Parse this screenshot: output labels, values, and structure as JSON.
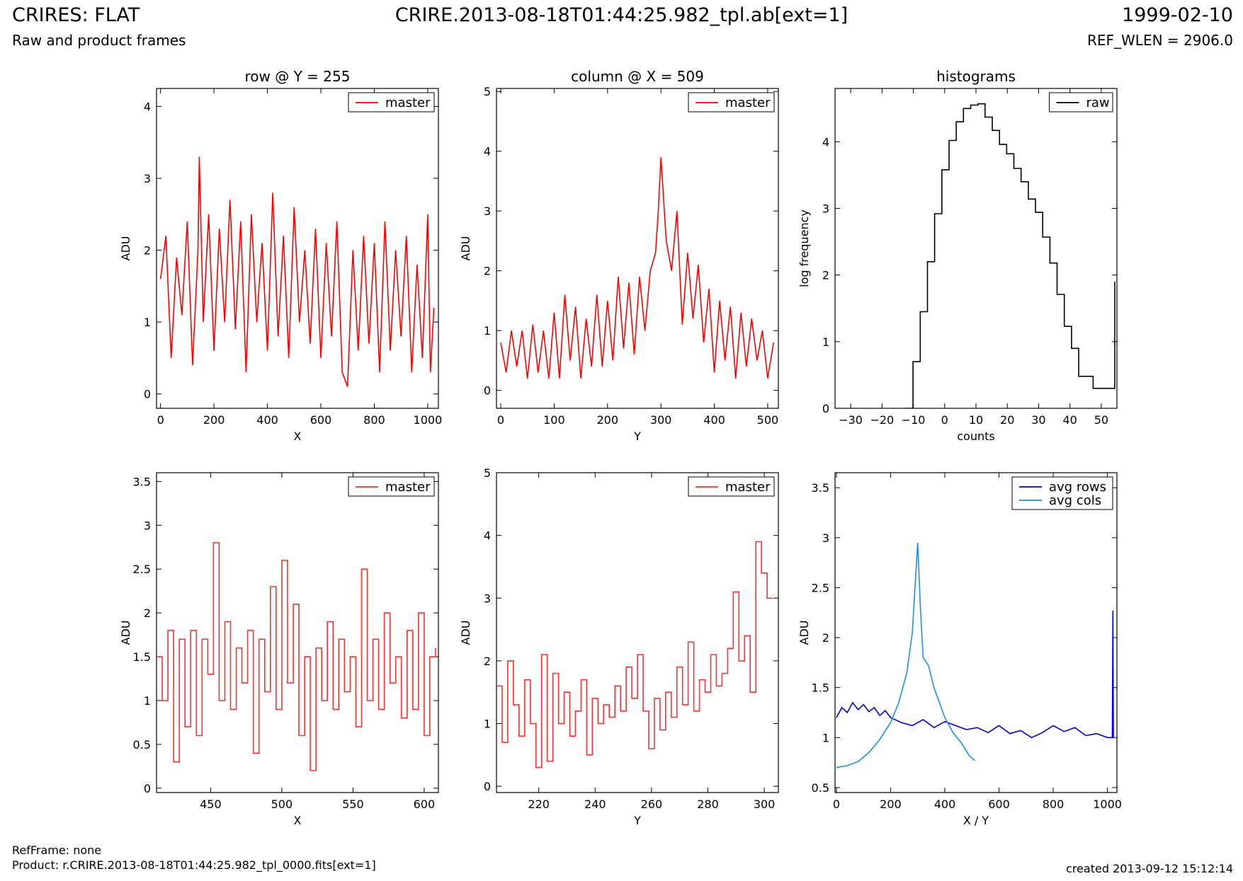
{
  "header": {
    "title_left": "CRIRES: FLAT",
    "subtitle_left": "Raw and product frames",
    "title_center": "CRIRE.2013-08-18T01:44:25.982_tpl.ab[ext=1]",
    "title_right": "1999-02-10",
    "subtitle_right": "REF_WLEN = 2906.0"
  },
  "footer": {
    "refframe": "RefFrame: none",
    "product": "Product: r.CRIRE.2013-08-18T01:44:25.982_tpl_0000.fits[ext=1]",
    "created": "created 2013-09-12 15:12:14"
  },
  "colors": {
    "master": "#ff0000",
    "raw": "#000000",
    "avg_rows": "#0000ee",
    "avg_cols": "#1e8ff0"
  },
  "chart_data": [
    {
      "type": "line",
      "title": "row @ Y = 255",
      "xlabel": "X",
      "ylabel": "ADU",
      "xlim": [
        -15,
        1040
      ],
      "ylim": [
        -0.2,
        4.25
      ],
      "xticks": [
        0,
        200,
        400,
        600,
        800,
        1000
      ],
      "yticks": [
        0,
        1,
        2,
        3,
        4
      ],
      "legend": "top-right",
      "series": [
        {
          "name": "master",
          "color": "#ff0000",
          "step": false,
          "x": [
            0,
            20,
            40,
            60,
            80,
            100,
            120,
            140,
            145,
            160,
            180,
            200,
            220,
            240,
            260,
            280,
            300,
            320,
            340,
            360,
            380,
            400,
            420,
            440,
            460,
            480,
            500,
            520,
            540,
            560,
            580,
            600,
            620,
            640,
            660,
            680,
            700,
            720,
            740,
            760,
            780,
            800,
            820,
            840,
            860,
            880,
            900,
            920,
            940,
            960,
            980,
            1000,
            1010,
            1023
          ],
          "y": [
            1.6,
            2.2,
            0.5,
            1.9,
            1.1,
            2.4,
            0.4,
            2.0,
            3.3,
            1.0,
            2.5,
            0.6,
            2.3,
            1.0,
            2.7,
            0.9,
            2.4,
            0.3,
            2.5,
            1.0,
            2.1,
            0.6,
            2.8,
            0.8,
            2.2,
            0.5,
            2.6,
            1.0,
            2.0,
            0.7,
            2.3,
            0.5,
            2.1,
            0.8,
            2.4,
            0.3,
            0.1,
            2.0,
            0.6,
            2.2,
            0.7,
            2.1,
            0.3,
            2.4,
            0.6,
            2.0,
            0.8,
            2.2,
            0.3,
            1.8,
            0.5,
            2.5,
            0.3,
            1.2
          ]
        }
      ]
    },
    {
      "type": "line",
      "title": "column @ X = 509",
      "xlabel": "Y",
      "ylabel": "ADU",
      "xlim": [
        -8,
        520
      ],
      "ylim": [
        -0.3,
        5.05
      ],
      "xticks": [
        0,
        100,
        200,
        300,
        400,
        500
      ],
      "yticks": [
        0,
        1,
        2,
        3,
        4,
        5
      ],
      "legend": "top-right",
      "series": [
        {
          "name": "master",
          "color": "#ff0000",
          "step": false,
          "x": [
            0,
            10,
            20,
            30,
            40,
            50,
            60,
            70,
            80,
            90,
            100,
            110,
            120,
            130,
            140,
            150,
            160,
            170,
            180,
            190,
            200,
            210,
            220,
            230,
            240,
            250,
            260,
            270,
            280,
            290,
            295,
            300,
            305,
            310,
            320,
            330,
            340,
            350,
            360,
            370,
            380,
            390,
            400,
            410,
            420,
            430,
            440,
            450,
            460,
            470,
            480,
            490,
            500,
            511
          ],
          "y": [
            0.8,
            0.3,
            1.0,
            0.4,
            1.0,
            0.2,
            1.1,
            0.3,
            1.0,
            0.2,
            1.3,
            0.2,
            1.6,
            0.5,
            1.4,
            0.2,
            1.2,
            0.4,
            1.6,
            0.4,
            1.5,
            0.5,
            1.9,
            0.7,
            1.8,
            0.6,
            1.9,
            1.0,
            2.0,
            2.3,
            3.0,
            3.9,
            3.2,
            2.5,
            2.0,
            3.0,
            1.1,
            2.3,
            1.2,
            2.1,
            0.8,
            1.7,
            0.3,
            1.5,
            0.5,
            1.4,
            0.2,
            1.3,
            0.4,
            1.2,
            0.5,
            1.0,
            0.2,
            0.8
          ]
        }
      ]
    },
    {
      "type": "line",
      "title": "histograms",
      "xlabel": "counts",
      "ylabel": "log frequency",
      "xlim": [
        -35,
        55
      ],
      "ylim": [
        0,
        4.8
      ],
      "xticks": [
        -30,
        -20,
        -10,
        0,
        10,
        20,
        30,
        40,
        50
      ],
      "yticks": [
        0,
        1,
        2,
        3,
        4
      ],
      "legend": "top-right",
      "series": [
        {
          "name": "raw",
          "color": "#000000",
          "step": true,
          "x": [
            -12.4,
            -10.1,
            -7.8,
            -5.5,
            -3.2,
            -0.9,
            1.4,
            3.7,
            6.0,
            8.3,
            10.6,
            12.9,
            15.2,
            17.5,
            19.8,
            22.1,
            24.4,
            26.7,
            29.0,
            31.3,
            33.6,
            35.9,
            38.2,
            40.5,
            42.8,
            45.1,
            47.4,
            49.7,
            52.0,
            54.3
          ],
          "y": [
            0.0,
            0.7,
            1.45,
            2.2,
            2.92,
            3.58,
            4.02,
            4.3,
            4.5,
            4.55,
            4.57,
            4.37,
            4.17,
            3.96,
            3.82,
            3.6,
            3.4,
            3.14,
            2.94,
            2.57,
            2.18,
            1.71,
            1.23,
            0.9,
            0.48,
            0.48,
            0.3,
            0.3,
            0.3,
            1.9
          ]
        }
      ]
    },
    {
      "type": "line",
      "title": "",
      "xlabel": "X",
      "ylabel": "ADU",
      "xlim": [
        412,
        610
      ],
      "ylim": [
        -0.05,
        3.6
      ],
      "xticks": [
        450,
        500,
        550,
        600
      ],
      "yticks": [
        0.0,
        0.5,
        1.0,
        1.5,
        2.0,
        2.5,
        3.0,
        3.5
      ],
      "legend": "top-right",
      "series": [
        {
          "name": "master",
          "color": "#ff3030",
          "step": true,
          "x": [
            412,
            416,
            420,
            424,
            428,
            432,
            436,
            440,
            444,
            448,
            452,
            456,
            460,
            464,
            468,
            472,
            476,
            480,
            484,
            488,
            492,
            496,
            500,
            504,
            508,
            512,
            516,
            520,
            524,
            528,
            532,
            536,
            540,
            544,
            548,
            552,
            556,
            560,
            564,
            568,
            572,
            576,
            580,
            584,
            588,
            592,
            596,
            600,
            604,
            608
          ],
          "y": [
            1.5,
            1.0,
            1.8,
            0.3,
            1.7,
            0.7,
            1.8,
            0.6,
            1.7,
            1.3,
            2.8,
            1.0,
            1.9,
            0.9,
            1.6,
            1.2,
            1.8,
            0.4,
            1.7,
            1.1,
            2.3,
            0.9,
            2.6,
            1.2,
            2.1,
            0.6,
            1.5,
            0.2,
            1.6,
            1.0,
            1.9,
            0.9,
            1.7,
            1.1,
            1.5,
            0.7,
            2.5,
            1.0,
            1.7,
            0.9,
            2.0,
            1.2,
            1.5,
            0.8,
            1.8,
            0.9,
            2.0,
            0.6,
            1.5,
            1.6
          ]
        }
      ]
    },
    {
      "type": "line",
      "title": "",
      "xlabel": "Y",
      "ylabel": "ADU",
      "xlim": [
        205,
        305
      ],
      "ylim": [
        -0.1,
        5.0
      ],
      "xticks": [
        220,
        240,
        260,
        280,
        300
      ],
      "yticks": [
        0,
        1,
        2,
        3,
        4,
        5
      ],
      "legend": "top-right",
      "series": [
        {
          "name": "master",
          "color": "#ff3030",
          "step": true,
          "x": [
            205,
            207,
            209,
            211,
            213,
            215,
            217,
            219,
            221,
            223,
            225,
            227,
            229,
            231,
            233,
            235,
            237,
            239,
            241,
            243,
            245,
            247,
            249,
            251,
            253,
            255,
            257,
            259,
            261,
            263,
            265,
            267,
            269,
            271,
            273,
            275,
            277,
            279,
            281,
            283,
            285,
            287,
            289,
            291,
            293,
            295,
            297,
            299,
            301,
            303
          ],
          "y": [
            1.6,
            0.7,
            2.0,
            1.3,
            0.8,
            1.7,
            1.0,
            0.3,
            2.1,
            0.4,
            1.8,
            1.0,
            1.5,
            0.8,
            1.2,
            1.7,
            0.5,
            1.4,
            1.0,
            1.3,
            1.1,
            1.6,
            1.2,
            1.9,
            1.4,
            2.1,
            1.2,
            0.6,
            1.4,
            0.9,
            1.5,
            1.1,
            1.9,
            1.3,
            2.3,
            1.2,
            1.7,
            1.5,
            2.1,
            1.6,
            1.8,
            2.2,
            3.1,
            2.0,
            2.4,
            1.5,
            3.9,
            3.4,
            3.0,
            3.0
          ]
        }
      ]
    },
    {
      "type": "line",
      "title": "",
      "xlabel": "X / Y",
      "ylabel": "ADU",
      "xlim": [
        -5,
        1035
      ],
      "ylim": [
        0.45,
        3.65
      ],
      "xticks": [
        0,
        200,
        400,
        600,
        800,
        1000
      ],
      "yticks": [
        0.5,
        1.0,
        1.5,
        2.0,
        2.5,
        3.0,
        3.5
      ],
      "legend": "top-right",
      "series": [
        {
          "name": "avg rows",
          "color": "#0000ee",
          "step": false,
          "x": [
            0,
            20,
            40,
            60,
            80,
            100,
            120,
            140,
            160,
            180,
            200,
            240,
            280,
            320,
            360,
            400,
            440,
            480,
            520,
            560,
            600,
            640,
            680,
            720,
            760,
            800,
            840,
            880,
            920,
            960,
            1000,
            1018,
            1020,
            1022,
            1023
          ],
          "y": [
            1.2,
            1.3,
            1.25,
            1.35,
            1.28,
            1.33,
            1.26,
            1.3,
            1.22,
            1.27,
            1.2,
            1.15,
            1.12,
            1.18,
            1.1,
            1.16,
            1.12,
            1.08,
            1.1,
            1.05,
            1.12,
            1.04,
            1.07,
            1.0,
            1.05,
            1.12,
            1.06,
            1.1,
            1.02,
            1.04,
            1.0,
            1.0,
            2.27,
            1.0,
            1.0
          ]
        },
        {
          "name": "avg cols",
          "color": "#1e8ff0",
          "step": false,
          "x": [
            0,
            40,
            80,
            120,
            160,
            200,
            230,
            260,
            280,
            290,
            300,
            310,
            320,
            340,
            360,
            380,
            400,
            430,
            460,
            490,
            511
          ],
          "y": [
            0.7,
            0.72,
            0.76,
            0.85,
            0.98,
            1.15,
            1.35,
            1.65,
            2.05,
            2.5,
            2.95,
            2.3,
            1.8,
            1.72,
            1.5,
            1.35,
            1.2,
            1.05,
            0.95,
            0.82,
            0.77
          ]
        }
      ]
    }
  ]
}
